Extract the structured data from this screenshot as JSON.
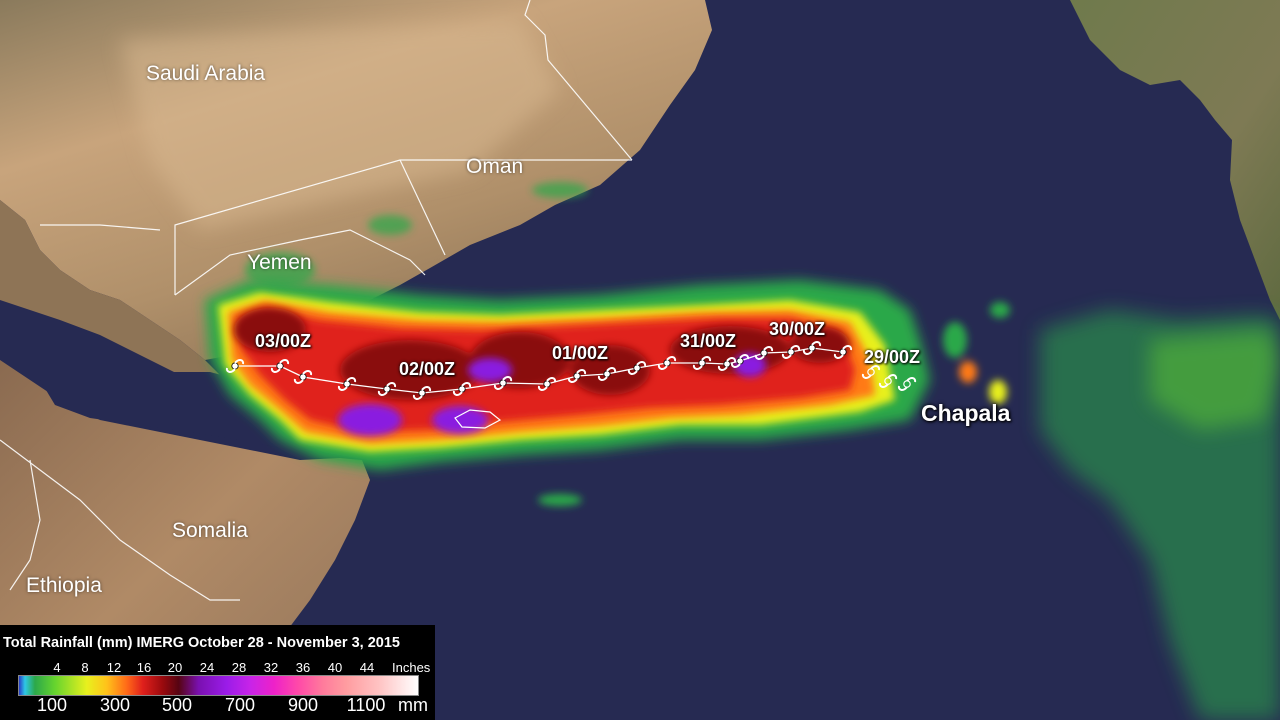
{
  "map": {
    "countries": [
      {
        "key": "saudi",
        "label": "Saudi Arabia"
      },
      {
        "key": "oman",
        "label": "Oman"
      },
      {
        "key": "yemen",
        "label": "Yemen"
      },
      {
        "key": "somalia",
        "label": "Somalia"
      },
      {
        "key": "ethiopia",
        "label": "Ethiopia"
      }
    ],
    "storm_name": "Chapala",
    "track_times": [
      "03/00Z",
      "02/00Z",
      "01/00Z",
      "31/00Z",
      "30/00Z",
      "29/00Z"
    ],
    "track_line_color": "#ffffff"
  },
  "legend": {
    "title": "Total Rainfall (mm) IMERG October 28 - November 3, 2015",
    "inches_ticks": [
      "4",
      "8",
      "12",
      "16",
      "20",
      "24",
      "28",
      "32",
      "36",
      "40",
      "44"
    ],
    "inches_unit": "Inches",
    "mm_ticks": [
      "100",
      "300",
      "500",
      "700",
      "900",
      "1100"
    ],
    "mm_unit": "mm",
    "colors": [
      "#2a3cc8",
      "#2ec8e6",
      "#2ca84a",
      "#66d42e",
      "#e8f01e",
      "#ffc21a",
      "#ff6a18",
      "#e0201c",
      "#9a0a0e",
      "#560412",
      "#7a10b0",
      "#c824e8",
      "#ff4aa8",
      "#ff9ca0",
      "#ffffff"
    ]
  },
  "colors": {
    "ocean": "#262a52",
    "land": "#b79b78",
    "legend_background": "#000000"
  }
}
